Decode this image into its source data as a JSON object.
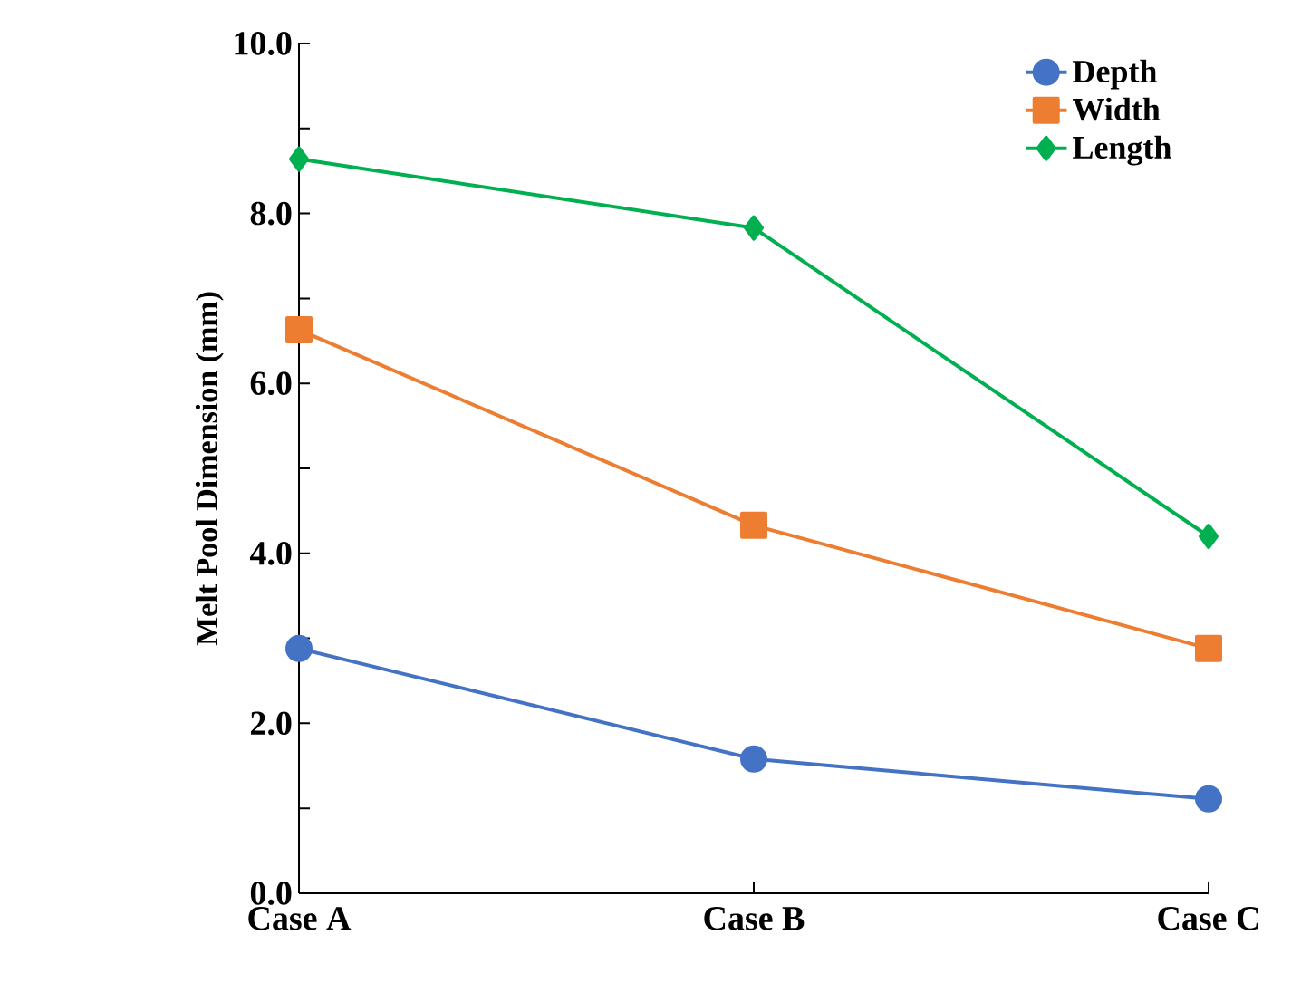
{
  "chart_data": {
    "type": "line",
    "ylabel": "Melt Pool Dimension (mm)",
    "categories": [
      "Case A",
      "Case B",
      "Case C"
    ],
    "series": [
      {
        "name": "Depth",
        "color": "#4472c4",
        "marker": "circle",
        "values": [
          2.88,
          1.58,
          1.11
        ]
      },
      {
        "name": "Width",
        "color": "#ed7d31",
        "marker": "square",
        "values": [
          6.63,
          4.33,
          2.88
        ]
      },
      {
        "name": "Length",
        "color": "#00b050",
        "marker": "diamond",
        "values": [
          8.64,
          7.83,
          4.2
        ]
      }
    ],
    "ylim": [
      0,
      10
    ],
    "yticks": [
      {
        "value": 0,
        "label": "0.0"
      },
      {
        "value": 1,
        "label": null
      },
      {
        "value": 2,
        "label": "2.0"
      },
      {
        "value": 3,
        "label": null
      },
      {
        "value": 4,
        "label": "4.0"
      },
      {
        "value": 5,
        "label": null
      },
      {
        "value": 6,
        "label": "6.0"
      },
      {
        "value": 7,
        "label": null
      },
      {
        "value": 8,
        "label": "8.0"
      },
      {
        "value": 9,
        "label": null
      },
      {
        "value": 10,
        "label": "10.0"
      }
    ],
    "grid": false,
    "legend": "top right",
    "line_style": "solid"
  }
}
